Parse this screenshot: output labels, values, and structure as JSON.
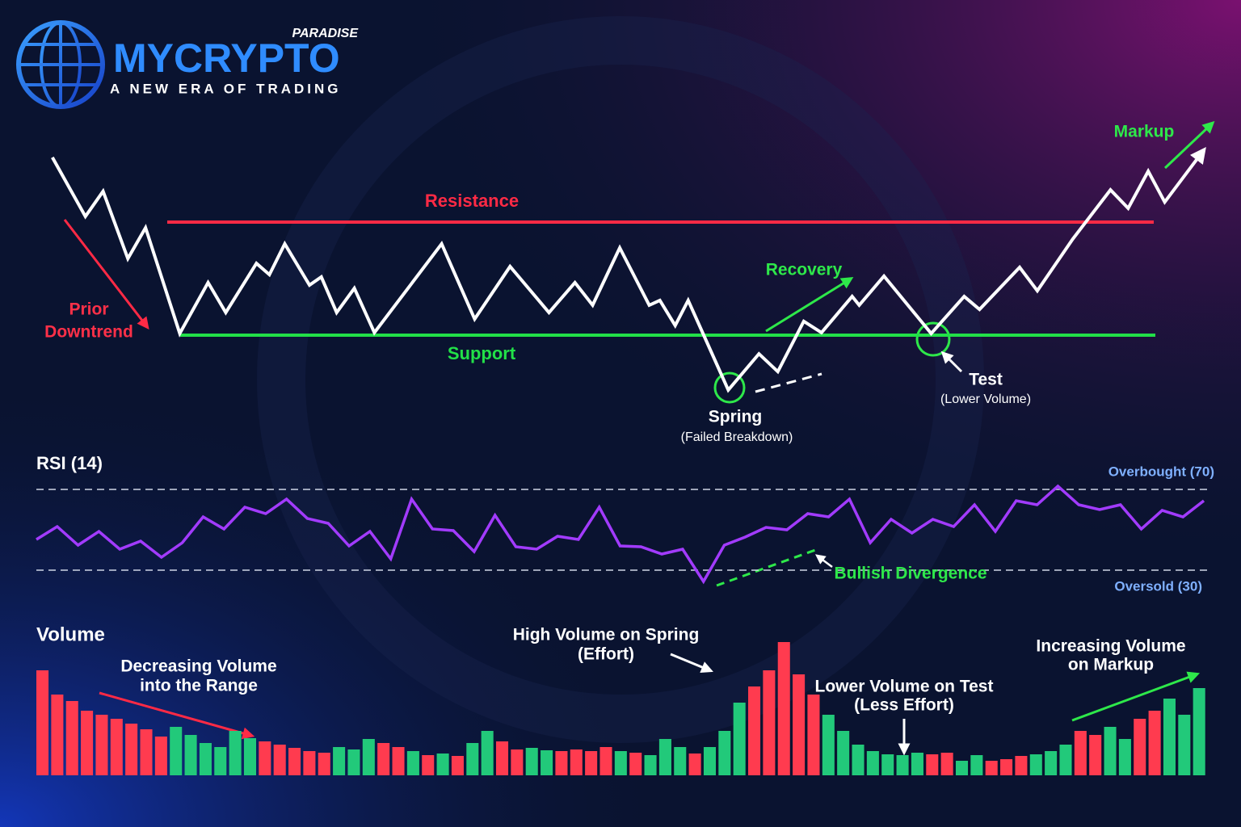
{
  "logo": {
    "brand": "MYCRYPTO",
    "tag": "PARADISE",
    "slogan": "A NEW ERA OF TRADING"
  },
  "chart_data": [
    {
      "type": "line",
      "color": "#ffffff",
      "xlim": [
        0,
        100
      ],
      "ylim": [
        0,
        100
      ],
      "x": [
        1.7,
        4.5,
        6.0,
        8.1,
        9.6,
        12.5,
        14.9,
        16.4,
        19.0,
        20.1,
        21.4,
        23.5,
        24.5,
        25.8,
        27.3,
        29.0,
        34.7,
        37.5,
        40.5,
        43.8,
        46.0,
        47.5,
        49.8,
        52.3,
        53.2,
        54.5,
        55.6,
        59.0,
        61.6,
        63.2,
        65.4,
        66.9,
        69.5,
        70.1,
        72.2,
        76.2,
        79.0,
        80.3,
        83.7,
        85.2,
        88.2,
        91.4,
        92.9,
        94.6,
        96.0,
        99.1
      ],
      "values": [
        92.9,
        72,
        80.9,
        57.1,
        68,
        30.6,
        48.6,
        38,
        55.4,
        51.4,
        62.3,
        47.7,
        50.6,
        38,
        46.6,
        30.9,
        62.3,
        35.7,
        54.3,
        38,
        48.6,
        40.6,
        60.9,
        40.6,
        42.3,
        33.4,
        42.3,
        10.6,
        23.4,
        17.1,
        34.9,
        30.9,
        43.7,
        40.6,
        50.9,
        30.6,
        43.7,
        39.1,
        54,
        45.7,
        64,
        81.4,
        74.9,
        88,
        77.1,
        94.3
      ],
      "resistance": 70,
      "resistance_label": "Resistance",
      "resistance_color": "#ff2a45",
      "support": 30,
      "support_label": "Support",
      "support_color": "#22e048",
      "annotations": {
        "prior_downtrend": [
          "Prior",
          "Downtrend"
        ],
        "recovery": "Recovery",
        "spring": [
          "Spring",
          "(Failed Breakdown)"
        ],
        "test": [
          "Test",
          "(Lower Volume)"
        ],
        "markup": "Markup"
      }
    },
    {
      "type": "line",
      "title": "RSI (14)",
      "color": "#a23bff",
      "ylim": [
        0,
        100
      ],
      "values": [
        45.2,
        51.6,
        42.4,
        49.2,
        40.4,
        44.4,
        36.4,
        43.6,
        56.4,
        50.4,
        61.2,
        58,
        65.2,
        55.6,
        53.2,
        42,
        49.2,
        35.6,
        65.2,
        50.4,
        49.6,
        39.2,
        57.2,
        41.6,
        40.4,
        46.8,
        45.2,
        61.2,
        42,
        41.6,
        38,
        40.4,
        24.4,
        42.4,
        46.4,
        51.2,
        50,
        58,
        56.4,
        65.2,
        43.6,
        55.2,
        48.4,
        55.2,
        51.6,
        62.4,
        49.2,
        64.4,
        62.4,
        71.6,
        62.4,
        60,
        62.4,
        50.4,
        59.6,
        56.4,
        64.4
      ],
      "overbought": {
        "value": 70,
        "label": "Overbought (70)"
      },
      "oversold": {
        "value": 30,
        "label": "Oversold (30)"
      },
      "annotation": "Bullish Divergence"
    },
    {
      "type": "bar",
      "title": "Volume",
      "ylim": [
        0,
        170
      ],
      "values": [
        130,
        100,
        92,
        80,
        75,
        70,
        64,
        57,
        48,
        60,
        50,
        40,
        35,
        55,
        46,
        42,
        38,
        34,
        30,
        28,
        35,
        32,
        45,
        40,
        35,
        30,
        25,
        27,
        24,
        40,
        55,
        42,
        32,
        34,
        31,
        30,
        32,
        30,
        35,
        30,
        28,
        25,
        45,
        35,
        27,
        35,
        55,
        90,
        110,
        130,
        165,
        125,
        100,
        75,
        55,
        38,
        30,
        26,
        25,
        28,
        26,
        28,
        18,
        25,
        18,
        20,
        24,
        26,
        30,
        38,
        55,
        50,
        60,
        45,
        70,
        80,
        95,
        75,
        108
      ],
      "colors": [
        "#ff3b4f",
        "#ff3b4f",
        "#ff3b4f",
        "#ff3b4f",
        "#ff3b4f",
        "#ff3b4f",
        "#ff3b4f",
        "#ff3b4f",
        "#ff3b4f",
        "#22c97a",
        "#22c97a",
        "#22c97a",
        "#22c97a",
        "#22c97a",
        "#22c97a",
        "#ff3b4f",
        "#ff3b4f",
        "#ff3b4f",
        "#ff3b4f",
        "#ff3b4f",
        "#22c97a",
        "#22c97a",
        "#22c97a",
        "#ff3b4f",
        "#ff3b4f",
        "#22c97a",
        "#ff3b4f",
        "#22c97a",
        "#ff3b4f",
        "#22c97a",
        "#22c97a",
        "#ff3b4f",
        "#ff3b4f",
        "#22c97a",
        "#22c97a",
        "#ff3b4f",
        "#ff3b4f",
        "#ff3b4f",
        "#ff3b4f",
        "#22c97a",
        "#ff3b4f",
        "#22c97a",
        "#22c97a",
        "#22c97a",
        "#ff3b4f",
        "#22c97a",
        "#22c97a",
        "#22c97a",
        "#ff3b4f",
        "#ff3b4f",
        "#ff3b4f",
        "#ff3b4f",
        "#ff3b4f",
        "#22c97a",
        "#22c97a",
        "#22c97a",
        "#22c97a",
        "#22c97a",
        "#22c97a",
        "#22c97a",
        "#ff3b4f",
        "#ff3b4f",
        "#22c97a",
        "#22c97a",
        "#ff3b4f",
        "#ff3b4f",
        "#ff3b4f",
        "#22c97a",
        "#22c97a",
        "#22c97a",
        "#ff3b4f",
        "#ff3b4f",
        "#22c97a",
        "#22c97a",
        "#ff3b4f",
        "#ff3b4f",
        "#22c97a",
        "#22c97a",
        "#22c97a"
      ],
      "annotations": {
        "decreasing": [
          "Decreasing Volume",
          "into the Range"
        ],
        "spring": [
          "High Volume on Spring",
          "(Effort)"
        ],
        "test": [
          "Lower Volume on Test",
          "(Less Effort)"
        ],
        "markup": [
          "Increasing Volume",
          "on Markup"
        ]
      }
    }
  ]
}
